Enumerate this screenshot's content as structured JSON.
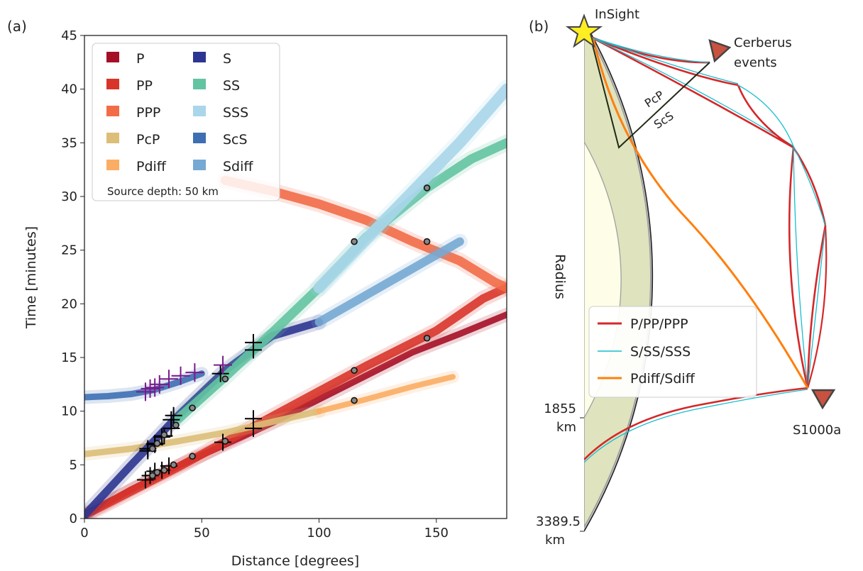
{
  "panel_a": {
    "label": "(a)",
    "xlabel": "Distance [degrees]",
    "ylabel": "Time [minutes]",
    "note": "Source depth: 50 km",
    "xticks": [
      "0",
      "50",
      "100",
      "150"
    ],
    "yticks": [
      "0",
      "5",
      "10",
      "15",
      "20",
      "25",
      "30",
      "35",
      "40",
      "45"
    ]
  },
  "panel_b": {
    "label": "(b)",
    "station": "InSight",
    "event_group_line1": "Cerberus",
    "event_group_line2": "events",
    "event_single": "S1000a",
    "phase_label_1": "PcP",
    "phase_label_2": "ScS",
    "axis_label": "Radius",
    "core_radius": "1855",
    "core_unit": "km",
    "surface_radius": "3389.5",
    "surface_unit": "km",
    "legend": [
      "P/PP/PPP",
      "S/SS/SSS",
      "Pdiff/Sdiff"
    ]
  },
  "colors": {
    "P": "#a50f26",
    "PP": "#d8352a",
    "PPP": "#f26c48",
    "PcP": "#dcbe78",
    "Pdiff": "#fbad63",
    "S": "#2c3591",
    "SS": "#63c4a1",
    "SSS": "#a9d6ea",
    "ScS": "#3e6fb2",
    "Sdiff": "#76a9d3",
    "mantle": "#dfe3be",
    "core": "#fefee8",
    "crust": "#b9b9b9",
    "ray_p": "#d62728",
    "ray_s": "#17becf",
    "ray_diff": "#ff7f0e",
    "star": "#ffee22",
    "triangle": "#c8523f",
    "picks_black": "#000000",
    "picks_purple": "#7b1a8b"
  },
  "chart_data": {
    "type": "scatter",
    "title": "",
    "xlabel": "Distance [degrees]",
    "ylabel": "Time [minutes]",
    "xlim": [
      0,
      180
    ],
    "ylim": [
      0,
      45
    ],
    "grid": false,
    "legend_placement": "top-left",
    "series": [
      {
        "name": "P",
        "x": [
          0,
          20,
          40,
          60,
          80,
          100,
          120,
          140,
          160,
          180
        ],
        "y": [
          0.3,
          2.7,
          4.9,
          6.9,
          8.9,
          11.1,
          13.3,
          15.5,
          17.2,
          19.0
        ]
      },
      {
        "name": "PP",
        "x": [
          0,
          40,
          80,
          120,
          150,
          170,
          180
        ],
        "y": [
          0.3,
          4.8,
          9.5,
          14.2,
          17.5,
          20.5,
          21.5
        ]
      },
      {
        "name": "PPP",
        "x": [
          60,
          80,
          100,
          120,
          140,
          160,
          175,
          180
        ],
        "y": [
          31.5,
          30.5,
          29.3,
          27.8,
          25.8,
          24.0,
          22.0,
          21.5
        ]
      },
      {
        "name": "PcP",
        "x": [
          0,
          20,
          40,
          60,
          80,
          100
        ],
        "y": [
          6.0,
          6.5,
          7.2,
          8.0,
          9.0,
          10.0
        ]
      },
      {
        "name": "Pdiff",
        "x": [
          100,
          120,
          140,
          157
        ],
        "y": [
          10.0,
          11.1,
          12.3,
          13.2
        ]
      },
      {
        "name": "S",
        "x": [
          0,
          20,
          40,
          60,
          80,
          100
        ],
        "y": [
          0.3,
          5.0,
          9.6,
          13.8,
          17.0,
          18.3
        ]
      },
      {
        "name": "SS",
        "x": [
          40,
          60,
          80,
          100,
          120,
          146,
          165,
          180
        ],
        "y": [
          9.3,
          13.2,
          17.3,
          21.5,
          26.2,
          30.8,
          33.5,
          35.0
        ]
      },
      {
        "name": "SSS",
        "x": [
          100,
          120,
          140,
          160,
          180
        ],
        "y": [
          21.5,
          26.0,
          30.5,
          35.0,
          40.0
        ]
      },
      {
        "name": "ScS",
        "x": [
          0,
          10,
          20,
          30,
          40,
          50
        ],
        "y": [
          11.3,
          11.4,
          11.6,
          12.0,
          12.7,
          13.5
        ]
      },
      {
        "name": "Sdiff",
        "x": [
          100,
          120,
          140,
          160
        ],
        "y": [
          18.3,
          20.8,
          23.3,
          25.8
        ]
      },
      {
        "name": "",
        "marker": "black-plus",
        "x": [
          26,
          28,
          30,
          33,
          36,
          27,
          30,
          33,
          37,
          27,
          30,
          34,
          37,
          38,
          59,
          58,
          72,
          72,
          72,
          72
        ],
        "y": [
          3.6,
          4.0,
          4.4,
          4.5,
          4.9,
          6.5,
          6.9,
          7.6,
          8.4,
          6.3,
          7.0,
          7.7,
          9.2,
          9.6,
          7.1,
          13.5,
          8.4,
          9.3,
          15.7,
          16.4
        ]
      },
      {
        "name": "",
        "marker": "purple-plus",
        "x": [
          26,
          28,
          30,
          32,
          36,
          41,
          47,
          59
        ],
        "y": [
          11.8,
          12.1,
          12.2,
          12.5,
          13.0,
          13.3,
          13.6,
          14.3
        ]
      },
      {
        "name": "",
        "marker": "black-circle",
        "x": [
          29,
          31,
          34,
          38,
          46,
          60,
          115,
          146,
          29,
          31,
          34,
          39,
          46,
          60,
          115,
          146
        ],
        "y": [
          4.0,
          4.3,
          4.5,
          5.0,
          5.8,
          7.2,
          11.0,
          16.8,
          6.5,
          7.0,
          7.8,
          8.7,
          10.3,
          13.0,
          13.8,
          25.8
        ]
      },
      {
        "name": "",
        "marker": "black-circle",
        "x": [
          115,
          146
        ],
        "y": [
          25.8,
          30.8
        ]
      }
    ]
  }
}
